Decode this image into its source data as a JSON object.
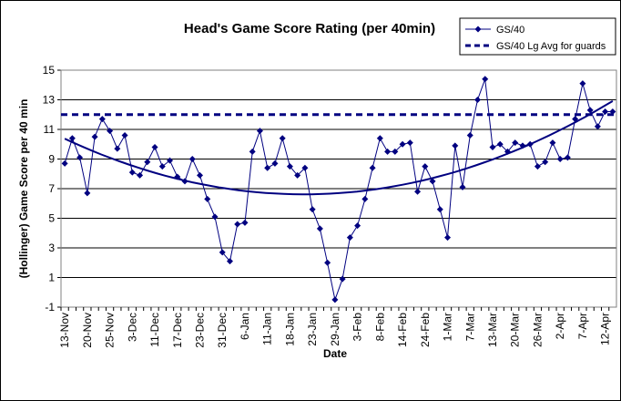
{
  "chart_data": {
    "type": "line",
    "title": "Head's Game Score Rating (per 40min)",
    "x_label": "Date",
    "y_label": "(Hollinger) Game Score per 40 min",
    "categories": [
      "13-Nov",
      null,
      null,
      "20-Nov",
      null,
      null,
      "25-Nov",
      null,
      null,
      "3-Dec",
      null,
      null,
      "11-Dec",
      null,
      null,
      "17-Dec",
      null,
      null,
      "23-Dec",
      null,
      null,
      "31-Dec",
      null,
      null,
      "6-Jan",
      null,
      null,
      "11-Jan",
      null,
      null,
      "18-Jan",
      null,
      null,
      "23-Jan",
      null,
      null,
      "29-Jan",
      null,
      null,
      "3-Feb",
      null,
      null,
      "8-Feb",
      null,
      null,
      "14-Feb",
      null,
      null,
      "24-Feb",
      null,
      null,
      "1-Mar",
      null,
      null,
      "7-Mar",
      null,
      null,
      "13-Mar",
      null,
      null,
      "20-Mar",
      null,
      null,
      "26-Mar",
      null,
      null,
      "2-Apr",
      null,
      null,
      "7-Apr",
      null,
      null,
      "12-Apr",
      null
    ],
    "series": [
      {
        "name": "GS/40",
        "color": "#000080",
        "values": [
          8.7,
          10.4,
          9.1,
          6.7,
          10.5,
          11.7,
          10.9,
          9.7,
          10.6,
          8.1,
          7.9,
          8.8,
          9.8,
          8.5,
          8.9,
          7.8,
          7.5,
          9.0,
          7.9,
          6.3,
          5.1,
          2.7,
          2.1,
          4.6,
          4.7,
          9.5,
          10.9,
          8.4,
          8.7,
          10.4,
          8.5,
          7.9,
          8.4,
          5.6,
          4.3,
          2.0,
          -0.5,
          0.9,
          3.7,
          4.5,
          6.3,
          8.4,
          10.4,
          9.5,
          9.5,
          10.0,
          10.1,
          6.8,
          8.5,
          7.5,
          5.6,
          3.7,
          9.9,
          7.1,
          10.6,
          13.0,
          14.4,
          9.8,
          10.0,
          9.5,
          10.1,
          9.9,
          10.0,
          8.5,
          8.8,
          10.1,
          9.0,
          9.1,
          11.7,
          14.1,
          12.3,
          11.2,
          12.2,
          12.2
        ]
      },
      {
        "name": "GS/40 Lg Avg for guards",
        "color": "#000080",
        "value": 12,
        "dashed": true
      }
    ],
    "trendline": "polynomial",
    "ylim": [
      -1,
      15
    ],
    "yticks": [
      -1,
      1,
      3,
      5,
      7,
      9,
      11,
      13,
      15
    ],
    "grid": true,
    "legend": "top-right"
  }
}
